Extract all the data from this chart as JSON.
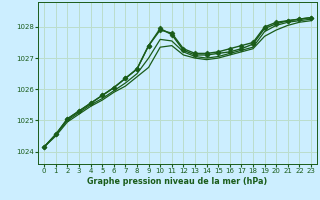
{
  "title": "Graphe pression niveau de la mer (hPa)",
  "background_color": "#cceeff",
  "grid_color": "#bbddcc",
  "line_color": "#1a5c1a",
  "xlim": [
    -0.5,
    23.5
  ],
  "ylim": [
    1023.6,
    1028.8
  ],
  "yticks": [
    1024,
    1025,
    1026,
    1027,
    1028
  ],
  "xticks": [
    0,
    1,
    2,
    3,
    4,
    5,
    6,
    7,
    8,
    9,
    10,
    11,
    12,
    13,
    14,
    15,
    16,
    17,
    18,
    19,
    20,
    21,
    22,
    23
  ],
  "series": [
    {
      "x": [
        0,
        1,
        2,
        3,
        4,
        5,
        6,
        7,
        8,
        9,
        10,
        11,
        12,
        13,
        14,
        15,
        16,
        17,
        18,
        19,
        20,
        21,
        22,
        23
      ],
      "y": [
        1024.15,
        1024.55,
        1025.05,
        1025.3,
        1025.55,
        1025.8,
        1026.05,
        1026.35,
        1026.65,
        1027.4,
        1027.9,
        1027.8,
        1027.3,
        1027.15,
        1027.15,
        1027.2,
        1027.3,
        1027.4,
        1027.5,
        1028.0,
        1028.15,
        1028.2,
        1028.25,
        1028.3
      ],
      "marker": true,
      "lw": 1.0
    },
    {
      "x": [
        0,
        1,
        2,
        3,
        4,
        5,
        6,
        7,
        8,
        9,
        10,
        11,
        12,
        13,
        14,
        15,
        16,
        17,
        18,
        19,
        20,
        21,
        22,
        23
      ],
      "y": [
        1024.15,
        1024.55,
        1025.05,
        1025.3,
        1025.55,
        1025.8,
        1026.05,
        1026.35,
        1026.65,
        1027.4,
        1027.95,
        1027.75,
        1027.25,
        1027.1,
        1027.1,
        1027.15,
        1027.2,
        1027.3,
        1027.45,
        1027.95,
        1028.1,
        1028.2,
        1028.25,
        1028.3
      ],
      "marker": true,
      "lw": 1.0
    },
    {
      "x": [
        0,
        1,
        2,
        3,
        4,
        5,
        6,
        7,
        8,
        9,
        10,
        11,
        12,
        13,
        14,
        15,
        16,
        17,
        18,
        19,
        20,
        21,
        22,
        23
      ],
      "y": [
        1024.15,
        1024.55,
        1025.0,
        1025.25,
        1025.5,
        1025.7,
        1025.95,
        1026.2,
        1026.5,
        1027.0,
        1027.6,
        1027.55,
        1027.2,
        1027.05,
        1027.0,
        1027.05,
        1027.15,
        1027.25,
        1027.35,
        1027.85,
        1028.05,
        1028.15,
        1028.2,
        1028.25
      ],
      "marker": false,
      "lw": 0.9
    },
    {
      "x": [
        0,
        1,
        2,
        3,
        4,
        5,
        6,
        7,
        8,
        9,
        10,
        11,
        12,
        13,
        14,
        15,
        16,
        17,
        18,
        19,
        20,
        21,
        22,
        23
      ],
      "y": [
        1024.15,
        1024.5,
        1024.95,
        1025.2,
        1025.45,
        1025.65,
        1025.9,
        1026.1,
        1026.4,
        1026.7,
        1027.35,
        1027.4,
        1027.1,
        1027.0,
        1026.95,
        1027.0,
        1027.1,
        1027.2,
        1027.3,
        1027.7,
        1027.9,
        1028.05,
        1028.15,
        1028.2
      ],
      "marker": false,
      "lw": 0.9
    }
  ]
}
